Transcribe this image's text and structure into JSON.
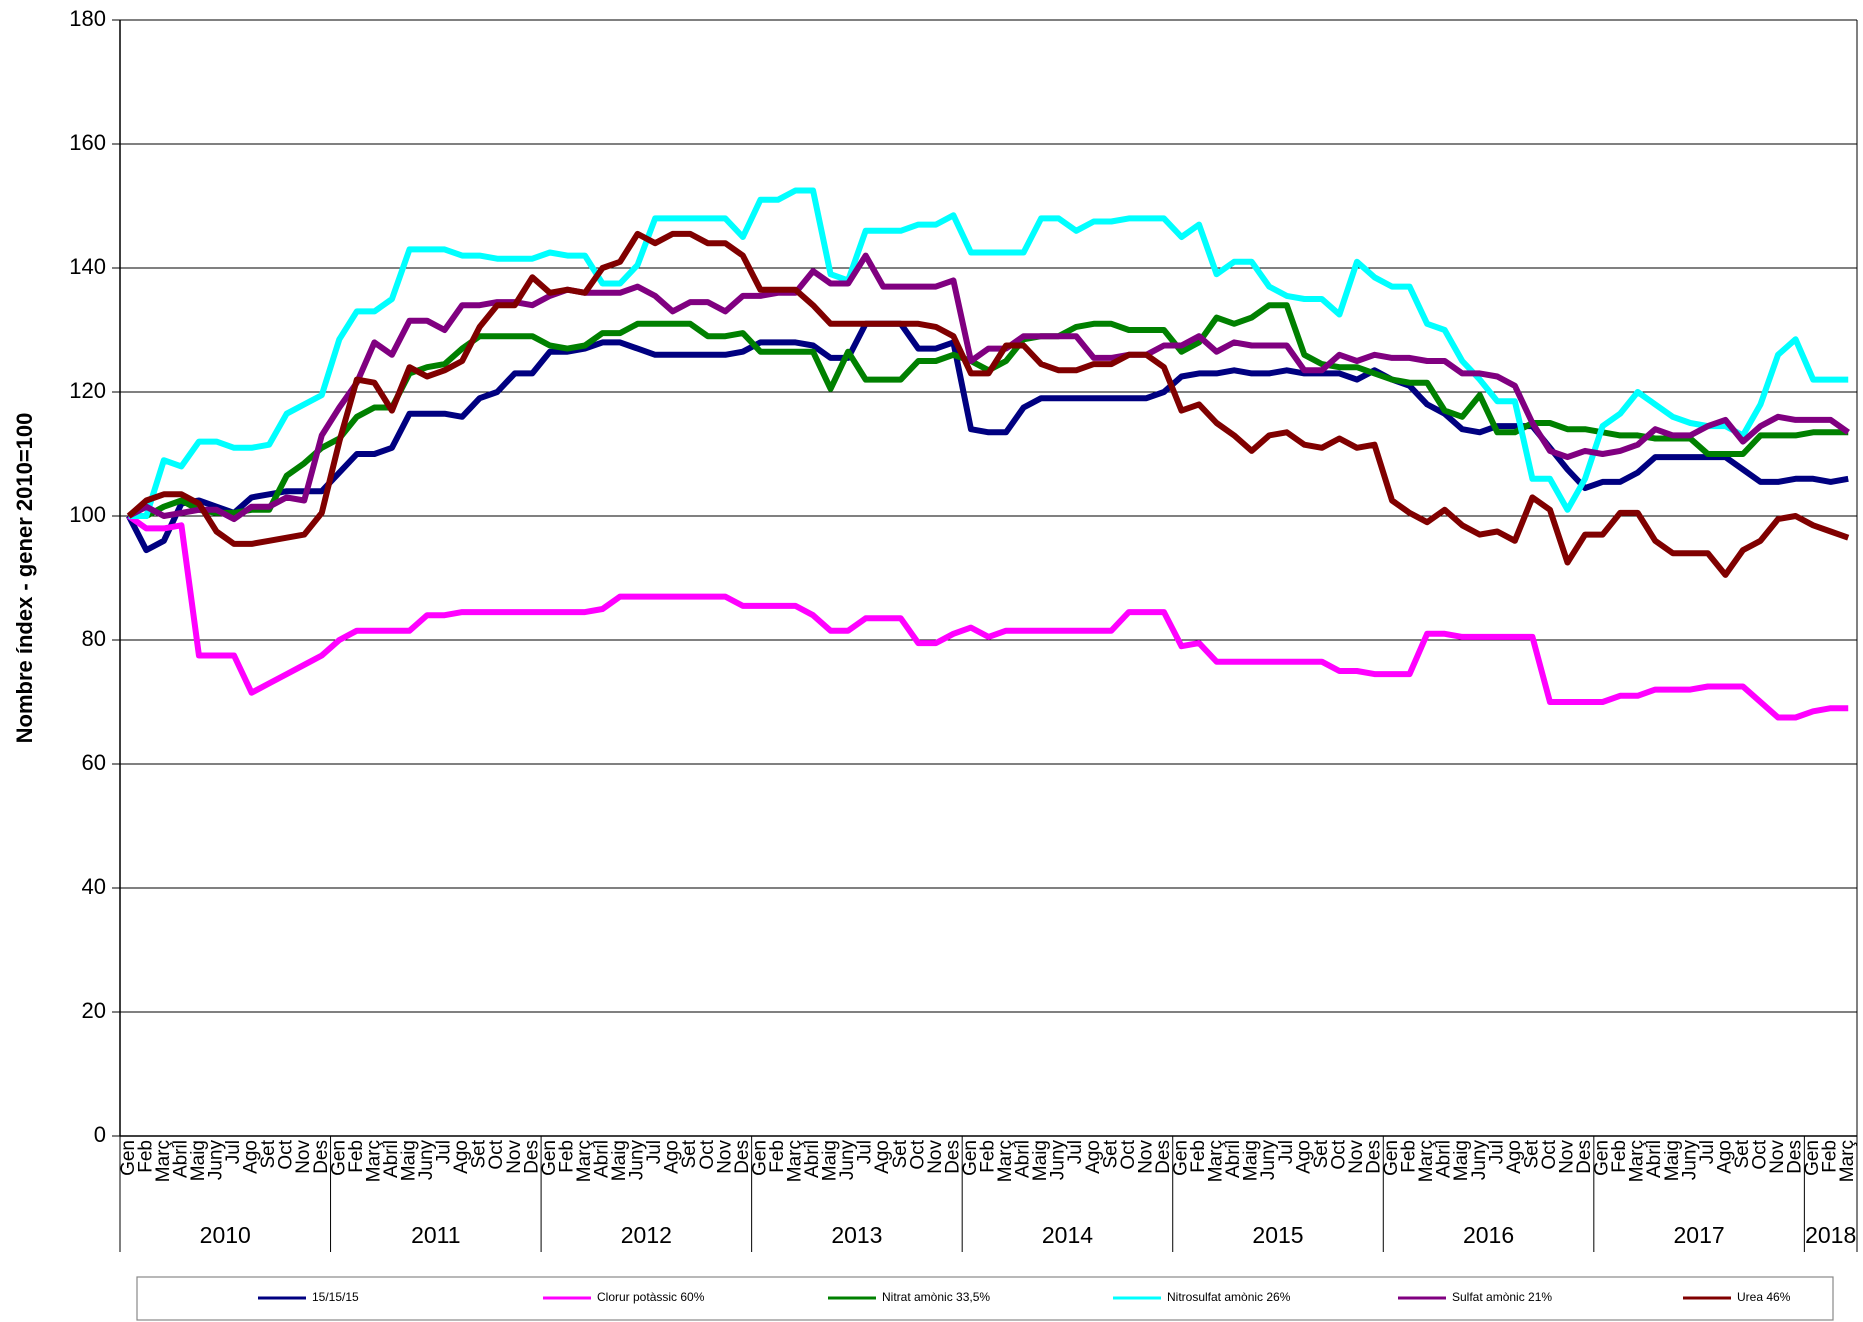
{
  "chart_data": {
    "type": "line",
    "y_label": "Nombre índex - gener 2010=100",
    "categories": [
      "Gen",
      "Feb",
      "Març",
      "Abril",
      "Maig",
      "Juny",
      "Jul",
      "Ago",
      "Set",
      "Oct",
      "Nov",
      "Des",
      "Gen",
      "Feb",
      "Març",
      "Abril",
      "Maig",
      "Juny",
      "Jul",
      "Ago",
      "Set",
      "Oct",
      "Nov",
      "Des",
      "Gen",
      "Feb",
      "Març",
      "Abril",
      "Maig",
      "Juny",
      "Jul",
      "Ago",
      "Set",
      "Oct",
      "Nov",
      "Des",
      "Gen",
      "Feb",
      "Març",
      "Abril",
      "Maig",
      "Juny",
      "Jul",
      "Ago",
      "Set",
      "Oct",
      "Nov",
      "Des",
      "Gen",
      "Feb",
      "Març",
      "Abril",
      "Maig",
      "Juny",
      "Jul",
      "Ago",
      "Set",
      "Oct",
      "Nov",
      "Des",
      "Gen",
      "Feb",
      "Març",
      "Abril",
      "Maig",
      "Juny",
      "Jul",
      "Ago",
      "Set",
      "Oct",
      "Nov",
      "Des",
      "Gen",
      "Feb",
      "Març",
      "Abril",
      "Maig",
      "Juny",
      "Jul",
      "Ago",
      "Set",
      "Oct",
      "Nov",
      "Des",
      "Gen",
      "Feb",
      "Març",
      "Abril",
      "Maig",
      "Juny",
      "Jul",
      "Ago",
      "Set",
      "Oct",
      "Nov",
      "Des",
      "Gen",
      "Feb",
      "Març"
    ],
    "years": [
      "2010",
      "2011",
      "2012",
      "2013",
      "2014",
      "2015",
      "2016",
      "2017",
      "2018"
    ],
    "ylim": [
      0,
      180
    ],
    "yticks": [
      0,
      20,
      40,
      60,
      80,
      100,
      120,
      140,
      160,
      180
    ],
    "grid": true,
    "legend_position": "bottom",
    "series": [
      {
        "name": "15/15/15",
        "color": "#000080",
        "values": [
          100,
          94.5,
          96,
          102,
          102.5,
          101.5,
          100.5,
          103,
          103.5,
          104,
          104,
          104,
          107,
          110,
          110,
          111,
          116.5,
          116.5,
          116.5,
          116,
          119,
          120,
          123,
          123,
          126.5,
          126.5,
          127,
          128,
          128,
          127,
          126,
          126,
          126,
          126,
          126,
          126.5,
          128,
          128,
          128,
          127.5,
          125.5,
          125.5,
          131,
          131,
          131,
          127,
          127,
          128,
          114,
          113.5,
          113.5,
          117.5,
          119,
          119,
          119,
          119,
          119,
          119,
          119,
          120,
          122.5,
          123,
          123,
          123.5,
          123,
          123,
          123.5,
          123,
          123,
          123,
          122,
          123.5,
          122,
          121,
          118,
          116.5,
          114,
          113.5,
          114.5,
          114.5,
          114.5,
          111,
          107.5,
          104.5,
          105.5,
          105.5,
          107,
          109.5,
          109.5,
          109.5,
          109.5,
          109.5,
          107.5,
          105.5,
          105.5,
          106,
          106,
          105.5,
          106
        ]
      },
      {
        "name": "Clorur potàssic  60%",
        "color": "#ff00ff",
        "values": [
          100,
          98,
          98,
          98.5,
          77.5,
          77.5,
          77.5,
          71.5,
          73,
          74.5,
          76,
          77.5,
          80,
          81.5,
          81.5,
          81.5,
          81.5,
          84,
          84,
          84.5,
          84.5,
          84.5,
          84.5,
          84.5,
          84.5,
          84.5,
          84.5,
          85,
          87,
          87,
          87,
          87,
          87,
          87,
          87,
          85.5,
          85.5,
          85.5,
          85.5,
          84,
          81.5,
          81.5,
          83.5,
          83.5,
          83.5,
          79.5,
          79.5,
          81,
          82,
          80.5,
          81.5,
          81.5,
          81.5,
          81.5,
          81.5,
          81.5,
          81.5,
          84.5,
          84.5,
          84.5,
          79,
          79.5,
          76.5,
          76.5,
          76.5,
          76.5,
          76.5,
          76.5,
          76.5,
          75,
          75,
          74.5,
          74.5,
          74.5,
          81,
          81,
          80.5,
          80.5,
          80.5,
          80.5,
          80.5,
          70,
          70,
          70,
          70,
          71,
          71,
          72,
          72,
          72,
          72.5,
          72.5,
          72.5,
          70,
          67.5,
          67.5,
          68.5,
          69,
          69
        ]
      },
      {
        "name": "Nitrat amònic 33,5%",
        "color": "#008000",
        "values": [
          100,
          100,
          101.5,
          102.5,
          101,
          100.5,
          100.5,
          101,
          101,
          106.5,
          108.5,
          111,
          112.5,
          116,
          117.5,
          117.5,
          123,
          124,
          124.5,
          127,
          129,
          129,
          129,
          129,
          127.5,
          127,
          127.5,
          129.5,
          129.5,
          131,
          131,
          131,
          131,
          129,
          129,
          129.5,
          126.5,
          126.5,
          126.5,
          126.5,
          120.5,
          126.5,
          122,
          122,
          122,
          125,
          125,
          126,
          125,
          123.5,
          125,
          128.5,
          129,
          129,
          130.5,
          131,
          131,
          130,
          130,
          130,
          126.5,
          128,
          132,
          131,
          132,
          134,
          134,
          126,
          124.5,
          124,
          124,
          123,
          122,
          121.5,
          121.5,
          117,
          116,
          119.5,
          113.5,
          113.5,
          115,
          115,
          114,
          114,
          113.5,
          113,
          113,
          112.5,
          112.5,
          112.5,
          110,
          110,
          110,
          113,
          113,
          113,
          113.5,
          113.5,
          113.5
        ]
      },
      {
        "name": "Nitrosulfat amònic  26%",
        "color": "#00ffff",
        "values": [
          100,
          100,
          109,
          108,
          112,
          112,
          111,
          111,
          111.5,
          116.5,
          118,
          119.5,
          128.5,
          133,
          133,
          135,
          143,
          143,
          143,
          142,
          142,
          141.5,
          141.5,
          141.5,
          142.5,
          142,
          142,
          137.5,
          137.5,
          140.5,
          148,
          148,
          148,
          148,
          148,
          145,
          151,
          151,
          152.5,
          152.5,
          139,
          138,
          146,
          146,
          146,
          147,
          147,
          148.5,
          142.5,
          142.5,
          142.5,
          142.5,
          148,
          148,
          146,
          147.5,
          147.5,
          148,
          148,
          148,
          145,
          147,
          139,
          141,
          141,
          137,
          135.5,
          135,
          135,
          132.5,
          141,
          138.5,
          137,
          137,
          131,
          130,
          125,
          122,
          118.5,
          118.5,
          106,
          106,
          101,
          106,
          114.5,
          116.5,
          120,
          118,
          116,
          115,
          114.5,
          114.5,
          113,
          118,
          126,
          128.5,
          122,
          122,
          122
        ]
      },
      {
        "name": "Sulfat amònic 21%",
        "color": "#800080",
        "values": [
          100,
          101.5,
          100,
          100.5,
          101,
          101,
          99.5,
          101.5,
          101.5,
          103,
          102.5,
          113,
          117.5,
          121.5,
          128,
          126,
          131.5,
          131.5,
          130,
          134,
          134,
          134.5,
          134.5,
          134,
          135.5,
          136.5,
          136,
          136,
          136,
          137,
          135.5,
          133,
          134.5,
          134.5,
          133,
          135.5,
          135.5,
          136,
          136,
          139.5,
          137.5,
          137.5,
          142,
          137,
          137,
          137,
          137,
          138,
          125,
          127,
          127,
          129,
          129,
          129,
          129,
          125.5,
          125.5,
          126,
          126,
          127.5,
          127.5,
          129,
          126.5,
          128,
          127.5,
          127.5,
          127.5,
          123.5,
          123.5,
          126,
          125,
          126,
          125.5,
          125.5,
          125,
          125,
          123,
          123,
          122.5,
          121,
          115,
          110.5,
          109.5,
          110.5,
          110,
          110.5,
          111.5,
          114,
          113,
          113,
          114.5,
          115.5,
          112,
          114.5,
          116,
          115.5,
          115.5,
          115.5,
          113.5
        ]
      },
      {
        "name": "Urea  46%",
        "color": "#800000",
        "values": [
          100,
          102.5,
          103.5,
          103.5,
          102,
          97.5,
          95.5,
          95.5,
          96,
          96.5,
          97,
          100.5,
          112,
          122,
          121.5,
          117,
          124,
          122.5,
          123.5,
          125,
          130.5,
          134,
          134,
          138.5,
          136,
          136.5,
          136,
          140,
          141,
          145.5,
          144,
          145.5,
          145.5,
          144,
          144,
          142,
          136.5,
          136.5,
          136.5,
          134,
          131,
          131,
          131,
          131,
          131,
          131,
          130.5,
          129,
          123,
          123,
          127.5,
          127.5,
          124.5,
          123.5,
          123.5,
          124.5,
          124.5,
          126,
          126,
          124,
          117,
          118,
          115,
          113,
          110.5,
          113,
          113.5,
          111.5,
          111,
          112.5,
          111,
          111.5,
          102.5,
          100.5,
          99,
          101,
          98.5,
          97,
          97.5,
          96,
          103,
          101,
          92.5,
          97,
          97,
          100.5,
          100.5,
          96,
          94,
          94,
          94,
          90.5,
          94.5,
          96,
          99.5,
          100,
          98.5,
          97.5,
          96.5
        ]
      }
    ]
  }
}
